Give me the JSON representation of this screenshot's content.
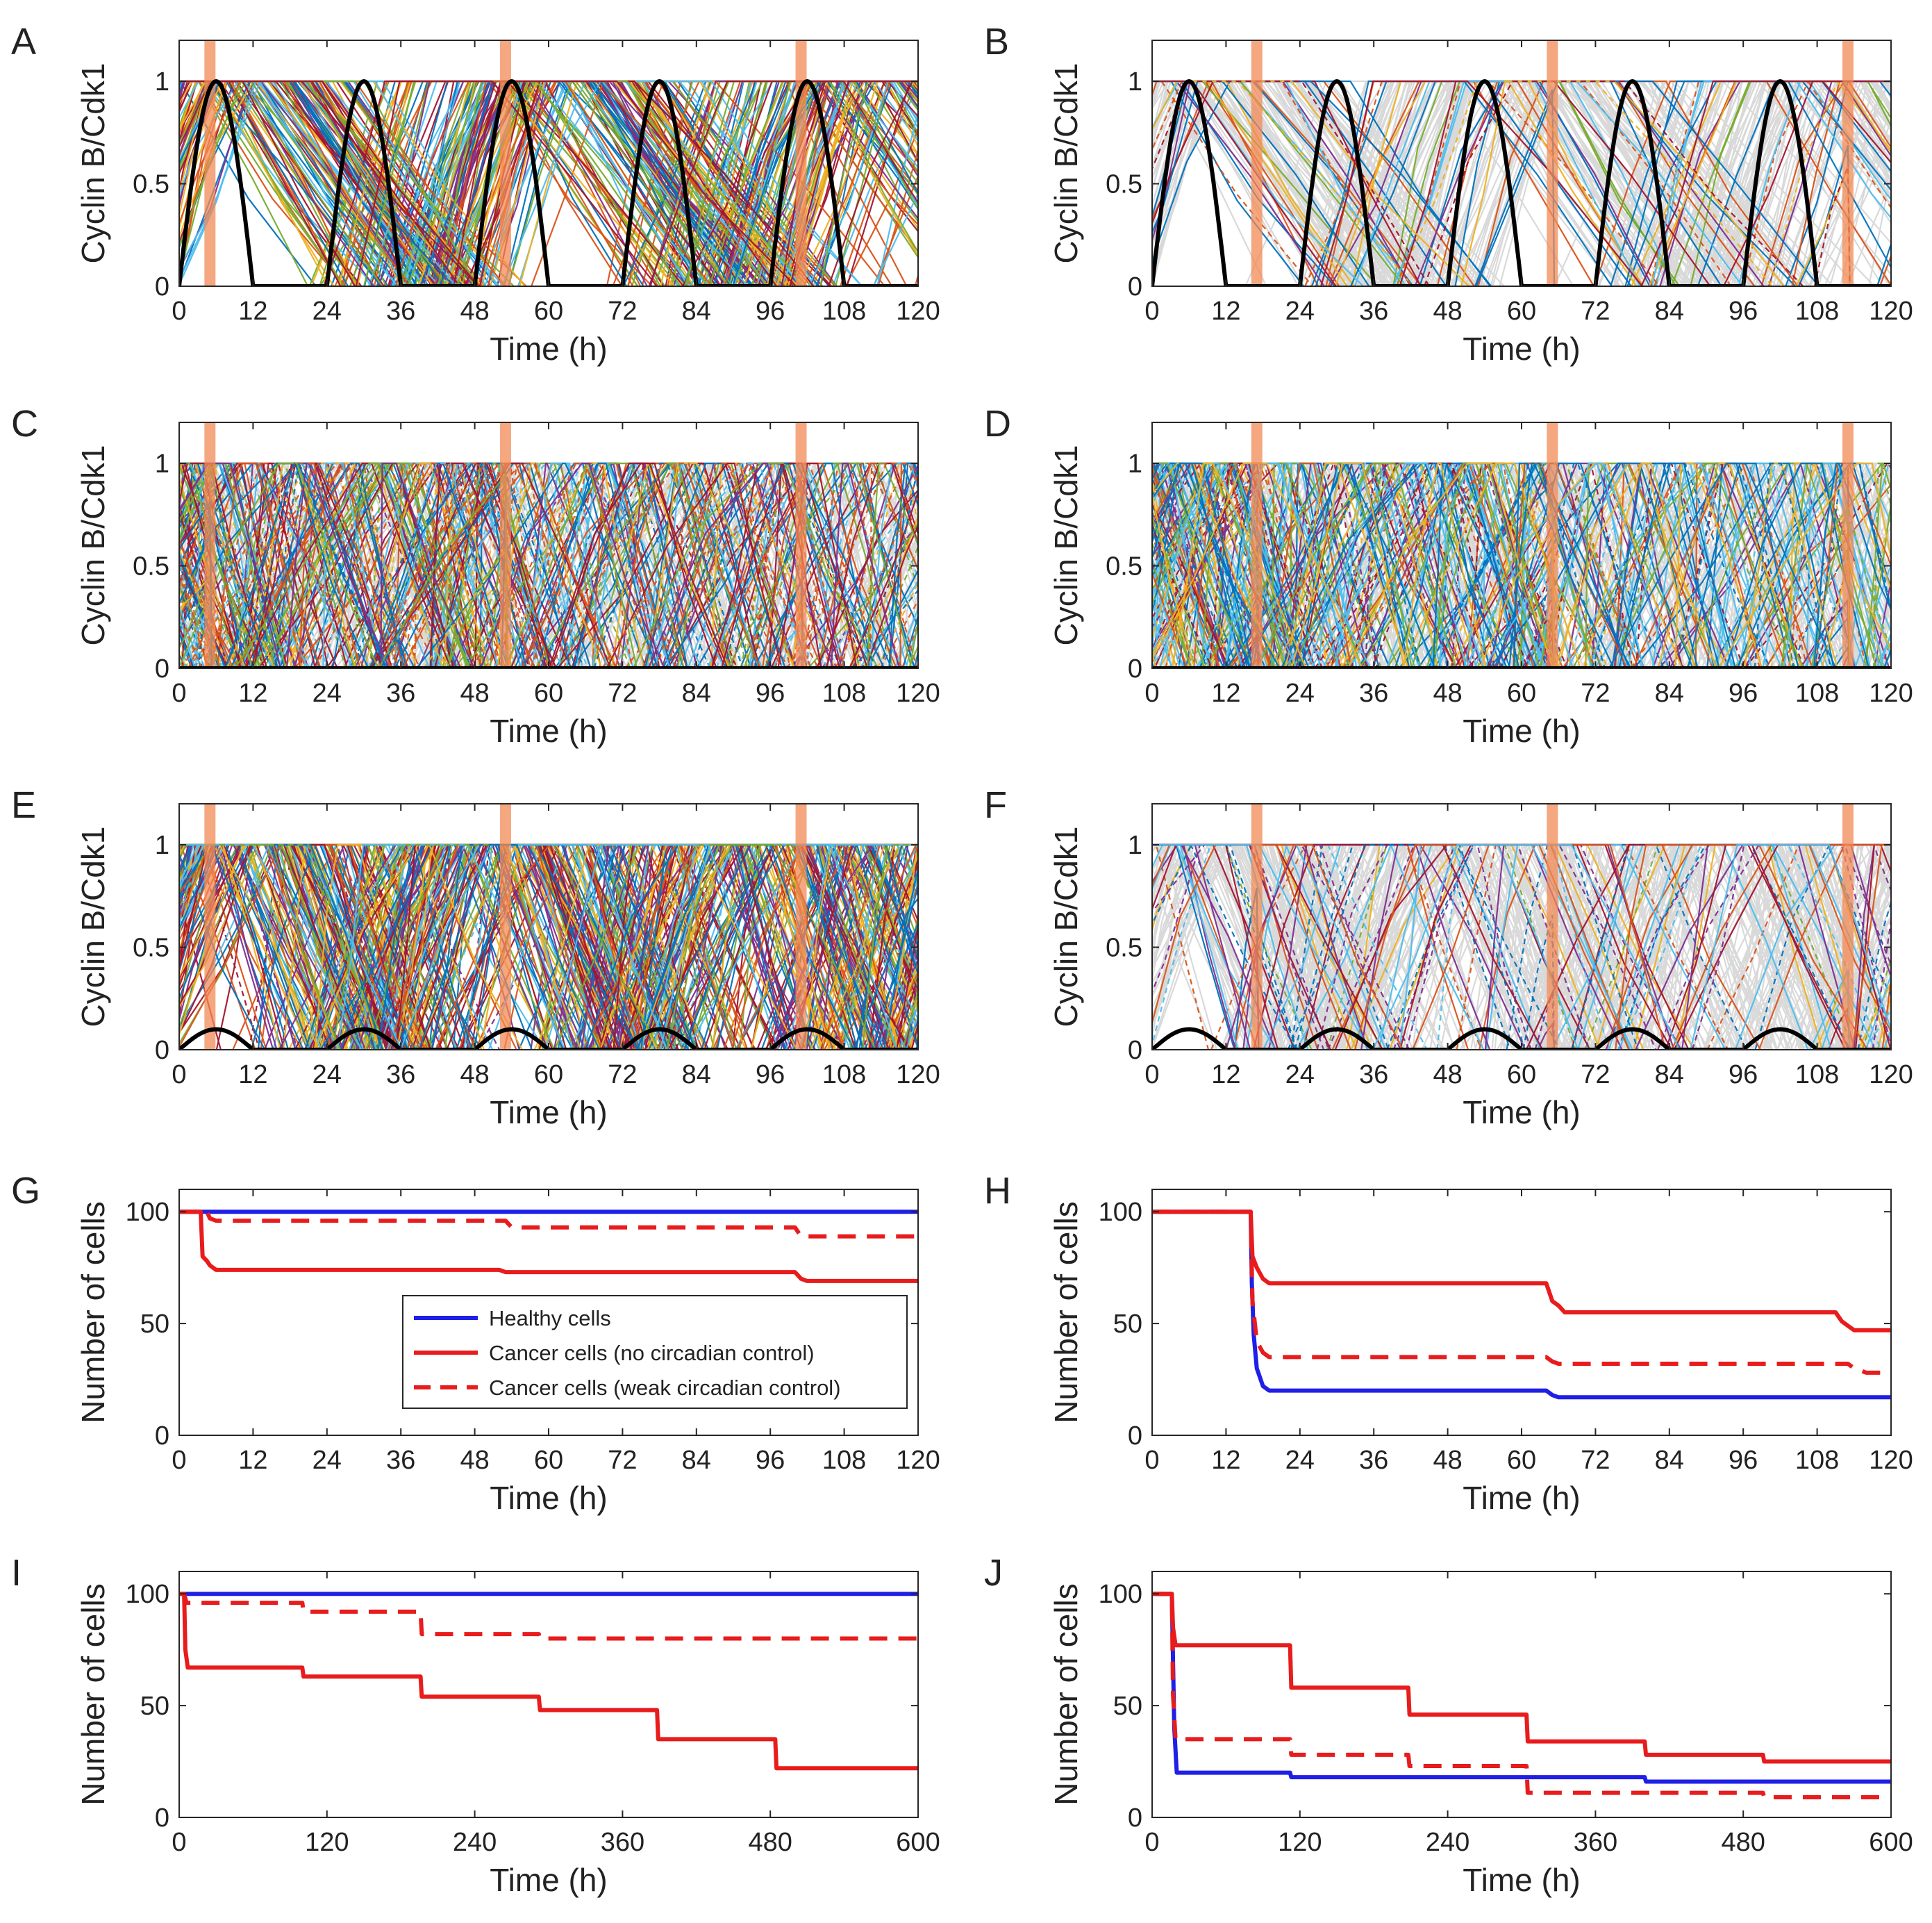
{
  "colors": {
    "healthy": "#1f1fe6",
    "cancer": "#e81c1c",
    "circadian": "#000000",
    "treatment": "#f28a55",
    "ghost": "#d9d9d9",
    "traces": [
      "#0072bd",
      "#d95319",
      "#edb120",
      "#7e2f8e",
      "#77ac30",
      "#4dbeee",
      "#a2142f"
    ]
  },
  "chart_data": [
    {
      "panel": "A",
      "type": "line",
      "ylabel": "Cyclin B/Cdk1",
      "xlabel": "Time (h)",
      "xlim": [
        0,
        120
      ],
      "ylim": [
        0,
        1.2
      ],
      "xticks": [
        "0",
        "12",
        "24",
        "36",
        "48",
        "60",
        "72",
        "84",
        "96",
        "108",
        "120"
      ],
      "yticks": [
        "0",
        "0.5",
        "1"
      ],
      "circadian": {
        "period": 24,
        "amplitude": 1,
        "peak": 6,
        "width": 12
      },
      "treatment_times": [
        5,
        53,
        101
      ],
      "traces": {
        "count": 120,
        "ghost_fraction": 0,
        "ramp": [
          7,
          15
        ],
        "hold": [
          15,
          20
        ],
        "decay": [
          17,
          30
        ],
        "dashed_fraction": 0
      }
    },
    {
      "panel": "B",
      "type": "line",
      "ylabel": "Cyclin B/Cdk1",
      "xlabel": "Time (h)",
      "xlim": [
        0,
        120
      ],
      "ylim": [
        0,
        1.2
      ],
      "xticks": [
        "0",
        "12",
        "24",
        "36",
        "48",
        "60",
        "72",
        "84",
        "96",
        "108",
        "120"
      ],
      "yticks": [
        "0",
        "0.5",
        "1"
      ],
      "circadian": {
        "period": 24,
        "amplitude": 1,
        "peak": 6,
        "width": 12
      },
      "treatment_times": [
        17,
        65,
        113
      ],
      "traces": {
        "count": 120,
        "ghost_fraction": 0.82,
        "ramp": [
          7,
          15
        ],
        "hold": [
          15,
          20
        ],
        "decay": [
          17,
          30
        ],
        "dashed_fraction": 0.15
      }
    },
    {
      "panel": "C",
      "type": "line",
      "ylabel": "Cyclin B/Cdk1",
      "xlabel": "Time (h)",
      "xlim": [
        0,
        120
      ],
      "ylim": [
        0,
        1.2
      ],
      "xticks": [
        "0",
        "12",
        "24",
        "36",
        "48",
        "60",
        "72",
        "84",
        "96",
        "108",
        "120"
      ],
      "yticks": [
        "0",
        "0.5",
        "1"
      ],
      "circadian": {
        "period": 24,
        "amplitude": 0,
        "peak": 6,
        "width": 12
      },
      "treatment_times": [
        5,
        53,
        101
      ],
      "traces": {
        "count": 140,
        "ghost_fraction": 0.3,
        "ramp": [
          0,
          24
        ],
        "hold": [
          0,
          4
        ],
        "decay": [
          6,
          16
        ],
        "dashed_fraction": 0.35
      }
    },
    {
      "panel": "D",
      "type": "line",
      "ylabel": "Cyclin B/Cdk1",
      "xlabel": "Time (h)",
      "xlim": [
        0,
        120
      ],
      "ylim": [
        0,
        1.2
      ],
      "xticks": [
        "0",
        "12",
        "24",
        "36",
        "48",
        "60",
        "72",
        "84",
        "96",
        "108",
        "120"
      ],
      "yticks": [
        "0",
        "0.5",
        "1"
      ],
      "circadian": {
        "period": 24,
        "amplitude": 0,
        "peak": 6,
        "width": 12
      },
      "treatment_times": [
        17,
        65,
        113
      ],
      "traces": {
        "count": 140,
        "ghost_fraction": 0.35,
        "ramp": [
          0,
          24
        ],
        "hold": [
          0,
          4
        ],
        "decay": [
          6,
          16
        ],
        "dashed_fraction": 0.4
      }
    },
    {
      "panel": "E",
      "type": "line",
      "ylabel": "Cyclin B/Cdk1",
      "xlabel": "Time (h)",
      "xlim": [
        0,
        120
      ],
      "ylim": [
        0,
        1.2
      ],
      "xticks": [
        "0",
        "12",
        "24",
        "36",
        "48",
        "60",
        "72",
        "84",
        "96",
        "108",
        "120"
      ],
      "yticks": [
        "0",
        "0.5",
        "1"
      ],
      "circadian": {
        "period": 24,
        "amplitude": 0.1,
        "peak": 6,
        "width": 12
      },
      "treatment_times": [
        5,
        53,
        101
      ],
      "traces": {
        "count": 140,
        "ghost_fraction": 0,
        "ramp": [
          3,
          19
        ],
        "hold": [
          14,
          22
        ],
        "decay": [
          8,
          18
        ],
        "dashed_fraction": 0.05
      }
    },
    {
      "panel": "F",
      "type": "line",
      "ylabel": "Cyclin B/Cdk1",
      "xlabel": "Time (h)",
      "xlim": [
        0,
        120
      ],
      "ylim": [
        0,
        1.2
      ],
      "xticks": [
        "0",
        "12",
        "24",
        "36",
        "48",
        "60",
        "72",
        "84",
        "96",
        "108",
        "120"
      ],
      "yticks": [
        "0",
        "0.5",
        "1"
      ],
      "circadian": {
        "period": 24,
        "amplitude": 0.1,
        "peak": 6,
        "width": 12
      },
      "treatment_times": [
        17,
        65,
        113
      ],
      "traces": {
        "count": 140,
        "ghost_fraction": 0.7,
        "ramp": [
          3,
          19
        ],
        "hold": [
          14,
          22
        ],
        "decay": [
          8,
          18
        ],
        "dashed_fraction": 0.35
      }
    },
    {
      "panel": "G",
      "type": "line",
      "ylabel": "Number of cells",
      "xlabel": "Time (h)",
      "xlim": [
        0,
        120
      ],
      "ylim": [
        0,
        110
      ],
      "xticks": [
        "0",
        "12",
        "24",
        "36",
        "48",
        "60",
        "72",
        "84",
        "96",
        "108",
        "120"
      ],
      "yticks": [
        "0",
        "50",
        "100"
      ],
      "legend": {
        "placement": "center",
        "entries": [
          "Healthy cells",
          "Cancer cells (no circadian control)",
          "Cancer cells (weak circadian control)"
        ]
      },
      "series": [
        {
          "name": "Healthy cells",
          "style": "solid",
          "color": "healthy",
          "points": [
            [
              0,
              100
            ],
            [
              120,
              100
            ]
          ]
        },
        {
          "name": "Cancer cells (no circadian control)",
          "style": "solid",
          "color": "cancer",
          "points": [
            [
              0,
              100
            ],
            [
              3.5,
              100
            ],
            [
              3.8,
              80
            ],
            [
              4.5,
              78
            ],
            [
              5,
              76
            ],
            [
              6,
              74
            ],
            [
              52,
              74
            ],
            [
              53,
              73
            ],
            [
              100,
              73
            ],
            [
              101,
              70
            ],
            [
              102,
              69
            ],
            [
              120,
              69
            ]
          ]
        },
        {
          "name": "Cancer cells (weak circadian control)",
          "style": "dashed",
          "color": "cancer",
          "points": [
            [
              0,
              100
            ],
            [
              4.5,
              100
            ],
            [
              5,
              97
            ],
            [
              6,
              96
            ],
            [
              53,
              96
            ],
            [
              54,
              93
            ],
            [
              100,
              93
            ],
            [
              101,
              89
            ],
            [
              120,
              89
            ]
          ]
        }
      ]
    },
    {
      "panel": "H",
      "type": "line",
      "ylabel": "Number of cells",
      "xlabel": "Time (h)",
      "xlim": [
        0,
        120
      ],
      "ylim": [
        0,
        110
      ],
      "xticks": [
        "0",
        "12",
        "24",
        "36",
        "48",
        "60",
        "72",
        "84",
        "96",
        "108",
        "120"
      ],
      "yticks": [
        "0",
        "50",
        "100"
      ],
      "series": [
        {
          "name": "Healthy cells",
          "style": "solid",
          "color": "healthy",
          "points": [
            [
              0,
              100
            ],
            [
              16,
              100
            ],
            [
              16.2,
              68
            ],
            [
              16.5,
              45
            ],
            [
              17,
              30
            ],
            [
              18,
              22
            ],
            [
              19,
              20
            ],
            [
              64,
              20
            ],
            [
              65,
              18
            ],
            [
              66,
              17
            ],
            [
              120,
              17
            ]
          ]
        },
        {
          "name": "Cancer cells (no circadian control)",
          "style": "solid",
          "color": "cancer",
          "points": [
            [
              0,
              100
            ],
            [
              16,
              100
            ],
            [
              16.3,
              80
            ],
            [
              17,
              75
            ],
            [
              18,
              70
            ],
            [
              19,
              68
            ],
            [
              64,
              68
            ],
            [
              65,
              60
            ],
            [
              66,
              58
            ],
            [
              67,
              55
            ],
            [
              111,
              55
            ],
            [
              112,
              51
            ],
            [
              113,
              49
            ],
            [
              114,
              47
            ],
            [
              120,
              47
            ]
          ]
        },
        {
          "name": "Cancer cells (weak circadian control)",
          "style": "dashed",
          "color": "cancer",
          "points": [
            [
              0,
              100
            ],
            [
              16,
              100
            ],
            [
              16.3,
              60
            ],
            [
              17,
              42
            ],
            [
              18,
              37
            ],
            [
              19,
              35
            ],
            [
              64,
              35
            ],
            [
              65,
              33
            ],
            [
              66,
              32
            ],
            [
              113,
              32
            ],
            [
              114,
              30
            ],
            [
              116,
              28
            ],
            [
              120,
              28
            ]
          ]
        }
      ]
    },
    {
      "panel": "I",
      "type": "line",
      "ylabel": "Number of cells",
      "xlabel": "Time (h)",
      "xlim": [
        0,
        600
      ],
      "ylim": [
        0,
        110
      ],
      "xticks": [
        "0",
        "120",
        "240",
        "360",
        "480",
        "600"
      ],
      "yticks": [
        "0",
        "50",
        "100"
      ],
      "series": [
        {
          "name": "Healthy cells",
          "style": "solid",
          "color": "healthy",
          "points": [
            [
              0,
              100
            ],
            [
              600,
              100
            ]
          ]
        },
        {
          "name": "Cancer cells (no circadian control)",
          "style": "solid",
          "color": "cancer",
          "points": [
            [
              0,
              100
            ],
            [
              4,
              100
            ],
            [
              5,
              75
            ],
            [
              7,
              67
            ],
            [
              100,
              67
            ],
            [
              101,
              63
            ],
            [
              196,
              63
            ],
            [
              197,
              54
            ],
            [
              292,
              54
            ],
            [
              293,
              48
            ],
            [
              388,
              48
            ],
            [
              389,
              35
            ],
            [
              484,
              35
            ],
            [
              485,
              22
            ],
            [
              600,
              22
            ]
          ]
        },
        {
          "name": "Cancer cells (weak circadian control)",
          "style": "dashed",
          "color": "cancer",
          "points": [
            [
              0,
              100
            ],
            [
              4,
              100
            ],
            [
              6,
              96
            ],
            [
              100,
              96
            ],
            [
              101,
              92
            ],
            [
              196,
              92
            ],
            [
              197,
              82
            ],
            [
              292,
              82
            ],
            [
              293,
              80
            ],
            [
              600,
              80
            ]
          ]
        }
      ]
    },
    {
      "panel": "J",
      "type": "line",
      "ylabel": "Number of cells",
      "xlabel": "Time (h)",
      "xlim": [
        0,
        600
      ],
      "ylim": [
        0,
        110
      ],
      "xticks": [
        "0",
        "120",
        "240",
        "360",
        "480",
        "600"
      ],
      "yticks": [
        "0",
        "50",
        "100"
      ],
      "series": [
        {
          "name": "Healthy cells",
          "style": "solid",
          "color": "healthy",
          "points": [
            [
              0,
              100
            ],
            [
              16,
              100
            ],
            [
              17,
              70
            ],
            [
              18,
              40
            ],
            [
              20,
              20
            ],
            [
              112,
              20
            ],
            [
              113,
              18
            ],
            [
              400,
              18
            ],
            [
              401,
              16
            ],
            [
              600,
              16
            ]
          ]
        },
        {
          "name": "Cancer cells (no circadian control)",
          "style": "solid",
          "color": "cancer",
          "points": [
            [
              0,
              100
            ],
            [
              16,
              100
            ],
            [
              17,
              85
            ],
            [
              19,
              77
            ],
            [
              112,
              77
            ],
            [
              113,
              58
            ],
            [
              208,
              58
            ],
            [
              209,
              46
            ],
            [
              304,
              46
            ],
            [
              305,
              34
            ],
            [
              400,
              34
            ],
            [
              401,
              28
            ],
            [
              496,
              28
            ],
            [
              497,
              25
            ],
            [
              600,
              25
            ]
          ]
        },
        {
          "name": "Cancer cells (weak circadian control)",
          "style": "dashed",
          "color": "cancer",
          "points": [
            [
              0,
              100
            ],
            [
              16,
              100
            ],
            [
              17,
              55
            ],
            [
              19,
              35
            ],
            [
              112,
              35
            ],
            [
              113,
              28
            ],
            [
              208,
              28
            ],
            [
              209,
              23
            ],
            [
              304,
              23
            ],
            [
              305,
              11
            ],
            [
              496,
              11
            ],
            [
              497,
              9
            ],
            [
              600,
              9
            ]
          ]
        }
      ]
    }
  ]
}
